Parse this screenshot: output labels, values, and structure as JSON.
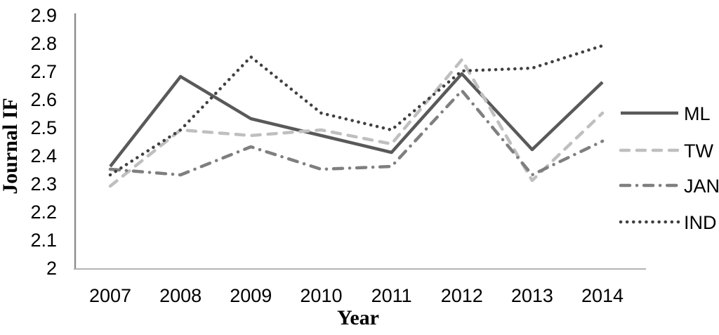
{
  "chart_data": {
    "type": "line",
    "title": "",
    "xlabel": "Year",
    "ylabel": "Journal IF",
    "x_categories": [
      "2007",
      "2008",
      "2009",
      "2010",
      "2011",
      "2012",
      "2013",
      "2014"
    ],
    "ylim": [
      2,
      2.9
    ],
    "ytick_labels": [
      "2.9",
      "2.8",
      "2.7",
      "2.6",
      "2.5",
      "2.4",
      "2.3",
      "2.2",
      "2.1",
      "2"
    ],
    "grid": "off",
    "legend_position": "right",
    "series": [
      {
        "name": "ML",
        "style": "solid",
        "color": "#595959",
        "values": [
          2.36,
          2.68,
          2.53,
          2.47,
          2.41,
          2.69,
          2.42,
          2.66
        ]
      },
      {
        "name": "TW",
        "style": "dashed",
        "color": "#bfbfbf",
        "values": [
          2.29,
          2.49,
          2.47,
          2.49,
          2.44,
          2.74,
          2.31,
          2.55
        ]
      },
      {
        "name": "JAN",
        "style": "dashdot",
        "color": "#7f7f7f",
        "values": [
          2.35,
          2.33,
          2.43,
          2.35,
          2.36,
          2.63,
          2.33,
          2.45
        ]
      },
      {
        "name": "IND",
        "style": "dotted",
        "color": "#404040",
        "values": [
          2.33,
          2.49,
          2.75,
          2.55,
          2.49,
          2.7,
          2.71,
          2.79
        ]
      }
    ]
  },
  "colors": {
    "background": "#ffffff",
    "y_axis_line": "#8c8c8c",
    "x_axis_line": "#b3b3b3",
    "text": "#000000"
  }
}
